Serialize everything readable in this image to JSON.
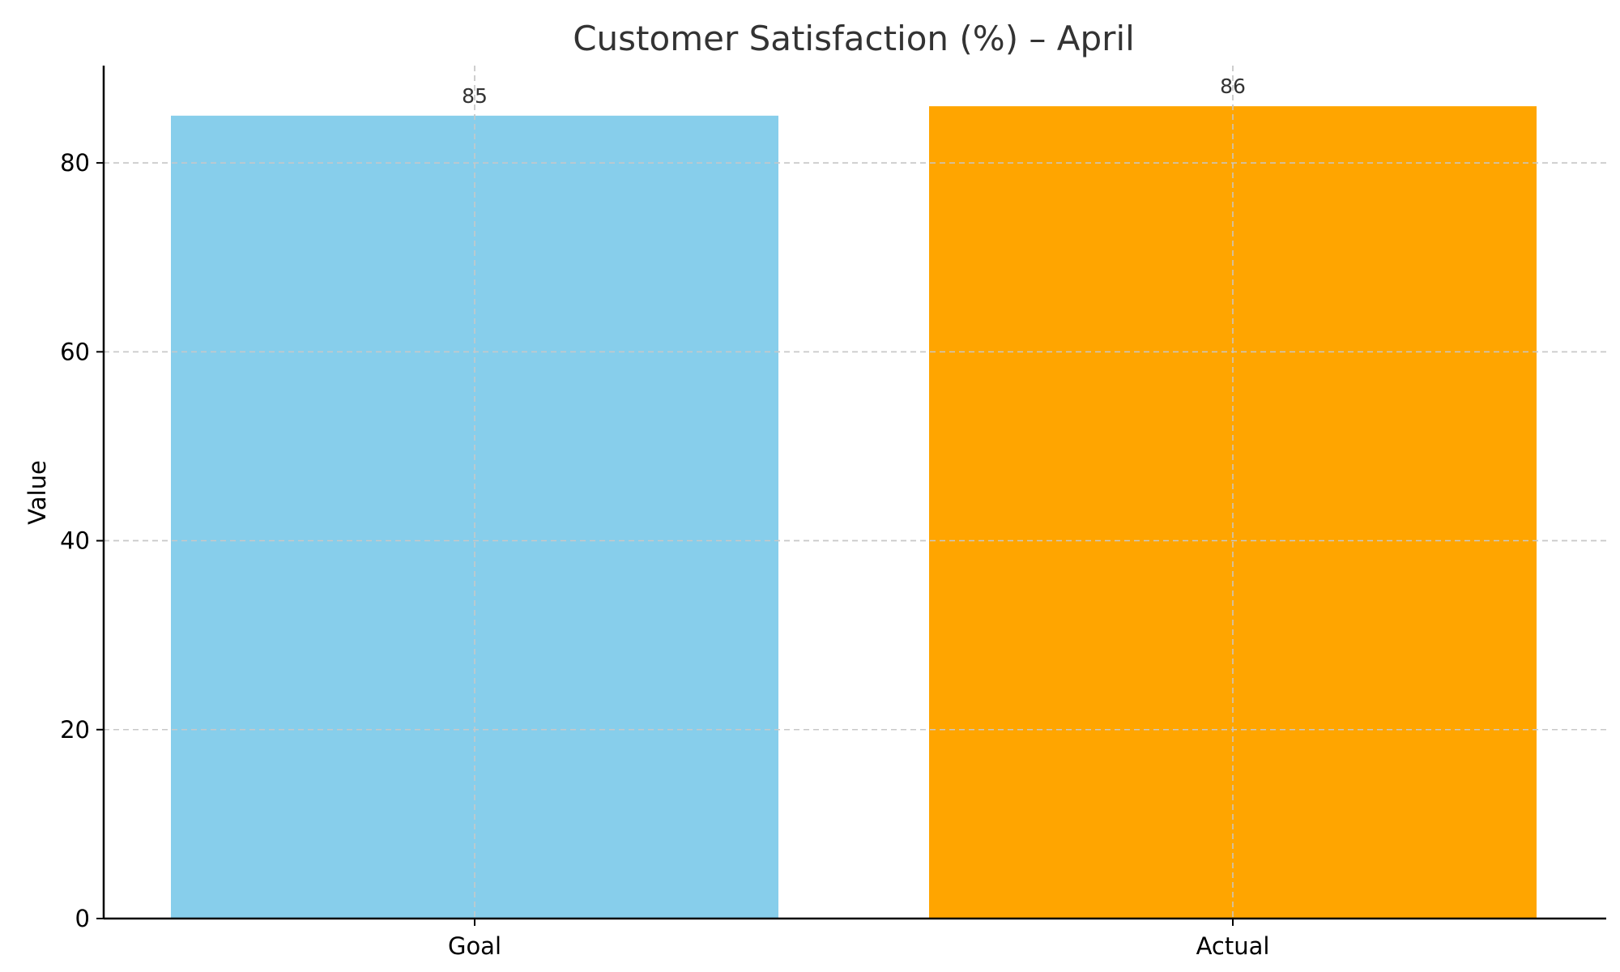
{
  "chart_data": {
    "type": "bar",
    "title": "Customer Satisfaction (%) – April",
    "xlabel": "",
    "ylabel": "Value",
    "categories": [
      "Goal",
      "Actual"
    ],
    "values": [
      85,
      86
    ],
    "data_labels": [
      "85",
      "86"
    ],
    "colors": [
      "#87CEEB",
      "#FFA500"
    ],
    "ylim": [
      0,
      90.3
    ],
    "yticks": [
      0,
      20,
      40,
      60,
      80
    ],
    "grid": true,
    "legend": "none"
  }
}
